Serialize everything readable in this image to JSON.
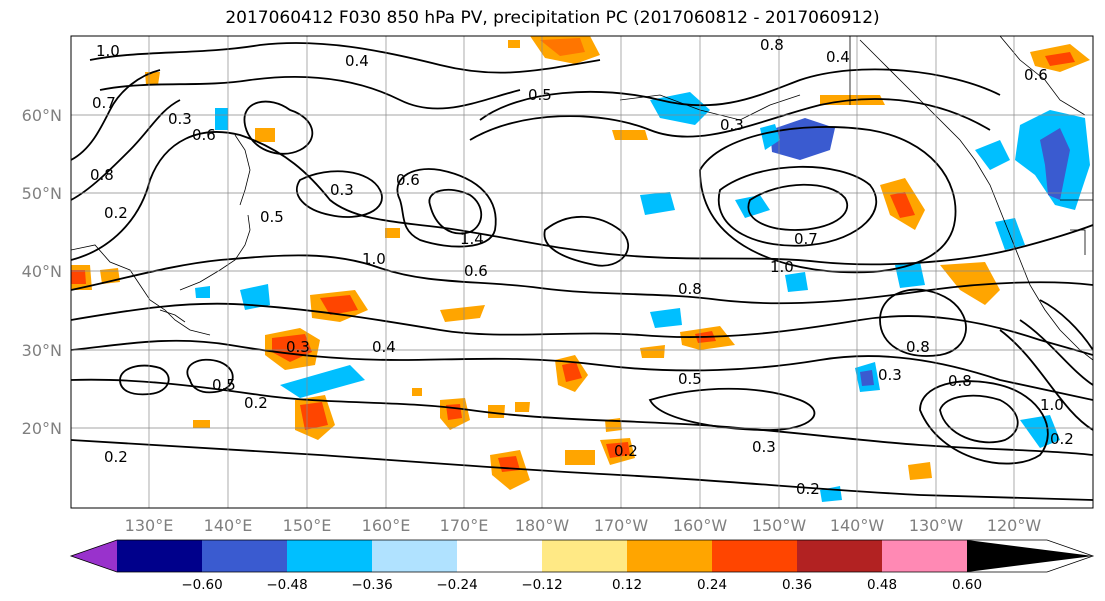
{
  "title": "2017060412 F030 850 hPa PV, precipitation PC (2017060812 - 2017060912)",
  "map": {
    "lat_ticks": [
      "60°N",
      "50°N",
      "40°N",
      "30°N",
      "20°N"
    ],
    "lon_ticks": [
      "130°E",
      "140°E",
      "150°E",
      "160°E",
      "170°E",
      "180°W",
      "170°W",
      "160°W",
      "150°W",
      "140°W",
      "130°W",
      "120°W"
    ],
    "contour_labels": [
      "1.0",
      "0.8",
      "0.4",
      "0.7",
      "0.5",
      "0.3",
      "0.8",
      "0.3",
      "0.6",
      "0.5",
      "0.2",
      "0.6",
      "1.0",
      "1.4",
      "0.6",
      "0.8",
      "1.0",
      "0.7",
      "0.3",
      "0.8",
      "0.3",
      "0.5",
      "0.2",
      "0.4",
      "0.5",
      "0.8",
      "0.3",
      "0.2",
      "0.2",
      "0.2",
      "1.0",
      "0.2",
      "0.6",
      "0.4",
      "0.3"
    ]
  },
  "colorbar": {
    "ticks": [
      "−0.60",
      "−0.48",
      "−0.36",
      "−0.24",
      "−0.12",
      "0.12",
      "0.24",
      "0.36",
      "0.48",
      "0.60"
    ],
    "colors": [
      "#9932cc",
      "#00008b",
      "#3a5bd0",
      "#00bfff",
      "#b0e2ff",
      "#ffffff",
      "#ffe985",
      "#ffa500",
      "#ff4500",
      "#b22222",
      "#ff89b4"
    ]
  }
}
